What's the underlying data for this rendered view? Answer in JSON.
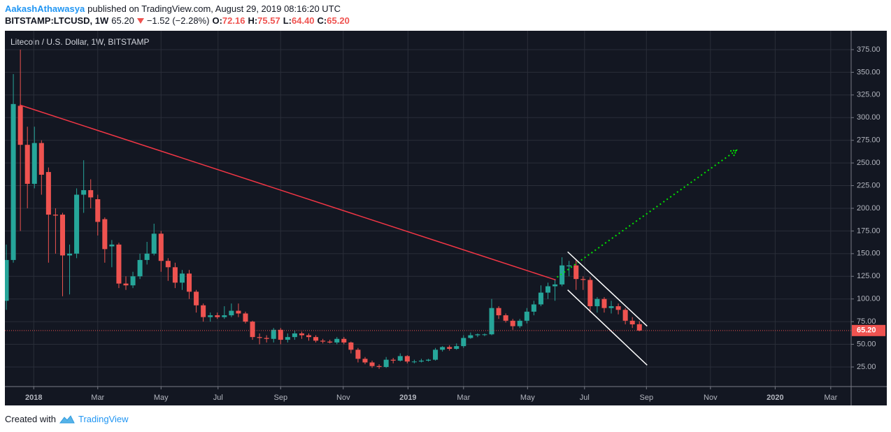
{
  "header": {
    "author": "AakashAthawasya",
    "published": "published on TradingView.com, August 29, 2019 08:16:20 UTC",
    "symbol": "BITSTAMP:LTCUSD, 1W",
    "last": "65.20",
    "change": "−1.52 (−2.28%)",
    "open_label": "O:",
    "open": "72.16",
    "high_label": "H:",
    "high": "75.57",
    "low_label": "L:",
    "low": "64.40",
    "close_label": "C:",
    "close": "65.20"
  },
  "footer": {
    "created": "Created with",
    "brand": "TradingView"
  },
  "chart_data": {
    "type": "candlestick",
    "title": "Litecoin / U.S. Dollar, 1W, BITSTAMP",
    "up_color": "#26a69a",
    "down_color": "#ef5350",
    "ohlc": [
      [
        98,
        160,
        88,
        143
      ],
      [
        143,
        348,
        140,
        315
      ],
      [
        313,
        375,
        175,
        270
      ],
      [
        270,
        290,
        200,
        227
      ],
      [
        227,
        290,
        222,
        272
      ],
      [
        272,
        275,
        215,
        237
      ],
      [
        240,
        245,
        140,
        193
      ],
      [
        193,
        200,
        150,
        192
      ],
      [
        193,
        195,
        103,
        148
      ],
      [
        148,
        160,
        105,
        150
      ],
      [
        150,
        222,
        145,
        215
      ],
      [
        215,
        253,
        195,
        220
      ],
      [
        220,
        232,
        200,
        212
      ],
      [
        210,
        215,
        170,
        185
      ],
      [
        188,
        190,
        140,
        155
      ],
      [
        158,
        165,
        135,
        160
      ],
      [
        160,
        162,
        112,
        117
      ],
      [
        117,
        125,
        110,
        115
      ],
      [
        115,
        130,
        112,
        125
      ],
      [
        125,
        150,
        122,
        143
      ],
      [
        143,
        163,
        138,
        150
      ],
      [
        150,
        183,
        148,
        172
      ],
      [
        172,
        175,
        130,
        142
      ],
      [
        142,
        145,
        120,
        135
      ],
      [
        135,
        140,
        112,
        118
      ],
      [
        118,
        132,
        110,
        128
      ],
      [
        128,
        132,
        100,
        108
      ],
      [
        108,
        110,
        85,
        93
      ],
      [
        93,
        95,
        75,
        80
      ],
      [
        80,
        85,
        75,
        82
      ],
      [
        82,
        85,
        78,
        80
      ],
      [
        80,
        92,
        78,
        82
      ],
      [
        82,
        95,
        80,
        87
      ],
      [
        87,
        95,
        80,
        84
      ],
      [
        84,
        86,
        73,
        75
      ],
      [
        75,
        76,
        55,
        58
      ],
      [
        58,
        62,
        50,
        57
      ],
      [
        57,
        60,
        52,
        56
      ],
      [
        56,
        68,
        52,
        66
      ],
      [
        66,
        68,
        50,
        55
      ],
      [
        55,
        62,
        52,
        58
      ],
      [
        58,
        65,
        55,
        62
      ],
      [
        62,
        64,
        56,
        60
      ],
      [
        60,
        62,
        54,
        58
      ],
      [
        58,
        60,
        52,
        54
      ],
      [
        54,
        56,
        51,
        53
      ],
      [
        53,
        55,
        51,
        52
      ],
      [
        52,
        58,
        50,
        56
      ],
      [
        56,
        58,
        50,
        52
      ],
      [
        52,
        53,
        40,
        44
      ],
      [
        44,
        46,
        30,
        34
      ],
      [
        34,
        36,
        28,
        30
      ],
      [
        30,
        32,
        24,
        26
      ],
      [
        26,
        28,
        23,
        25
      ],
      [
        25,
        36,
        24,
        33
      ],
      [
        33,
        35,
        29,
        32
      ],
      [
        32,
        40,
        31,
        37
      ],
      [
        37,
        38,
        29,
        31
      ],
      [
        31,
        33,
        29,
        31
      ],
      [
        31,
        34,
        30,
        32
      ],
      [
        32,
        34,
        31,
        33
      ],
      [
        33,
        46,
        32,
        44
      ],
      [
        44,
        48,
        42,
        47
      ],
      [
        47,
        49,
        43,
        45
      ],
      [
        45,
        51,
        44,
        48
      ],
      [
        48,
        60,
        46,
        57
      ],
      [
        57,
        63,
        56,
        60
      ],
      [
        60,
        62,
        58,
        61
      ],
      [
        61,
        62,
        59,
        61
      ],
      [
        61,
        100,
        60,
        90
      ],
      [
        90,
        92,
        78,
        82
      ],
      [
        82,
        84,
        74,
        76
      ],
      [
        76,
        78,
        66,
        70
      ],
      [
        70,
        78,
        68,
        76
      ],
      [
        76,
        90,
        73,
        86
      ],
      [
        86,
        98,
        82,
        94
      ],
      [
        94,
        115,
        92,
        107
      ],
      [
        107,
        118,
        100,
        114
      ],
      [
        114,
        122,
        98,
        116
      ],
      [
        116,
        146,
        114,
        137
      ],
      [
        136,
        142,
        125,
        137
      ],
      [
        137,
        143,
        110,
        122
      ],
      [
        122,
        125,
        110,
        121
      ],
      [
        121,
        124,
        85,
        92
      ],
      [
        92,
        102,
        85,
        100
      ],
      [
        100,
        102,
        85,
        90
      ],
      [
        90,
        98,
        84,
        92
      ],
      [
        92,
        95,
        83,
        88
      ],
      [
        88,
        90,
        72,
        76
      ],
      [
        76,
        80,
        68,
        72
      ],
      [
        72.16,
        75.57,
        64.4,
        65.2
      ]
    ],
    "xlim": [
      -0.2,
      120.1
    ],
    "xticks": [
      {
        "value": 3.9,
        "label": "2018"
      },
      {
        "value": 13.0,
        "label": "Mar"
      },
      {
        "value": 22.0,
        "label": "May"
      },
      {
        "value": 30.1,
        "label": "Jul"
      },
      {
        "value": 39.0,
        "label": "Sep"
      },
      {
        "value": 47.9,
        "label": "Nov"
      },
      {
        "value": 57.1,
        "label": "2019"
      },
      {
        "value": 65.0,
        "label": "Mar"
      },
      {
        "value": 74.1,
        "label": "May"
      },
      {
        "value": 82.2,
        "label": "Jul"
      },
      {
        "value": 91.0,
        "label": "Sep"
      },
      {
        "value": 100.1,
        "label": "Nov"
      },
      {
        "value": 109.3,
        "label": "2020"
      },
      {
        "value": 117.2,
        "label": "Mar"
      }
    ],
    "ylim": [
      3.4,
      395.8
    ],
    "yticks": [
      {
        "value": 25,
        "label": "25.00"
      },
      {
        "value": 50,
        "label": "50.00"
      },
      {
        "value": 75,
        "label": "75.00"
      },
      {
        "value": 100,
        "label": "100.00"
      },
      {
        "value": 125,
        "label": "125.00"
      },
      {
        "value": 150,
        "label": "150.00"
      },
      {
        "value": 175,
        "label": "175.00"
      },
      {
        "value": 200,
        "label": "200.00"
      },
      {
        "value": 225,
        "label": "225.00"
      },
      {
        "value": 250,
        "label": "250.00"
      },
      {
        "value": 275,
        "label": "275.00"
      },
      {
        "value": 300,
        "label": "300.00"
      },
      {
        "value": 325,
        "label": "325.00"
      },
      {
        "value": 350,
        "label": "350.00"
      },
      {
        "value": 375,
        "label": "375.00"
      }
    ],
    "grid": true,
    "last_price": {
      "value": 65.2,
      "label": "65.20",
      "color": "#ef5350"
    },
    "drawings": [
      {
        "color": "#f23645",
        "style": "solid",
        "points": [
          [
            1.9,
            314
          ],
          [
            78.1,
            121
          ]
        ]
      },
      {
        "color": "#00e600",
        "style": "dotted",
        "arrow": true,
        "points": [
          [
            78.3,
            124
          ],
          [
            103.8,
            264
          ]
        ]
      },
      {
        "color": "#ffffff",
        "style": "solid",
        "points": [
          [
            79.8,
            152
          ],
          [
            91.1,
            70
          ]
        ]
      },
      {
        "color": "#ffffff",
        "style": "solid",
        "points": [
          [
            79.8,
            110
          ],
          [
            91.1,
            27
          ]
        ]
      }
    ]
  }
}
